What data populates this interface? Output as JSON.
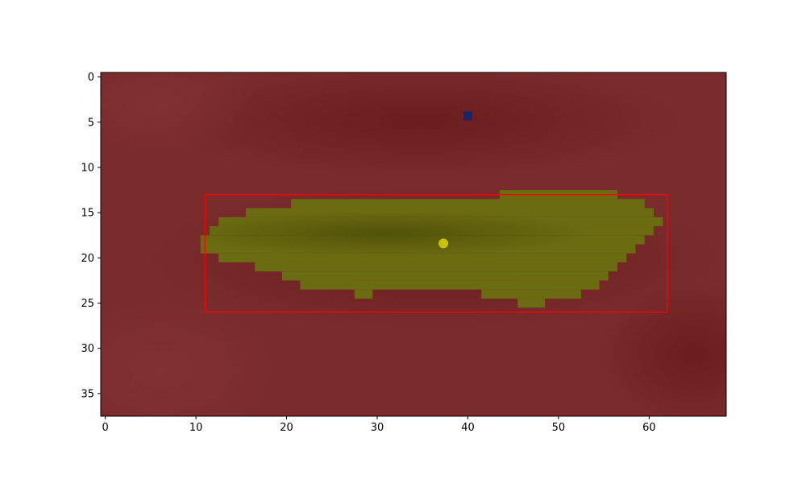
{
  "chart_data": {
    "type": "heatmap",
    "title": "",
    "xlabel": "",
    "ylabel": "",
    "xlim": [
      -0.5,
      68.5
    ],
    "ylim": [
      37.5,
      -0.5
    ],
    "x_ticks": [
      0,
      10,
      20,
      30,
      40,
      50,
      60
    ],
    "y_ticks": [
      0,
      5,
      10,
      15,
      20,
      25,
      30,
      35
    ],
    "x_tick_labels": [
      "0",
      "10",
      "20",
      "30",
      "40",
      "50",
      "60"
    ],
    "y_tick_labels": [
      "0",
      "5",
      "10",
      "15",
      "20",
      "25",
      "30",
      "35"
    ],
    "grid": false,
    "background_color": "#7a2b2b",
    "mask_color": "#6b6b12",
    "mask_rows": [
      {
        "y": 13,
        "x_start": 43.5,
        "x_end": 56.5
      },
      {
        "y": 14,
        "x_start": 20.5,
        "x_end": 59.5
      },
      {
        "y": 15,
        "x_start": 15.5,
        "x_end": 60.5
      },
      {
        "y": 16,
        "x_start": 12.5,
        "x_end": 61.5
      },
      {
        "y": 17,
        "x_start": 11.5,
        "x_end": 60.5
      },
      {
        "y": 18,
        "x_start": 10.5,
        "x_end": 59.5
      },
      {
        "y": 19,
        "x_start": 10.5,
        "x_end": 58.5
      },
      {
        "y": 20,
        "x_start": 12.5,
        "x_end": 57.5
      },
      {
        "y": 21,
        "x_start": 16.5,
        "x_end": 56.5
      },
      {
        "y": 22,
        "x_start": 19.5,
        "x_end": 55.5
      },
      {
        "y": 23,
        "x_start": 21.5,
        "x_end": 54.5
      },
      {
        "y": 24,
        "x_start": 27.5,
        "x_end": 29.5
      },
      {
        "y": 24,
        "x_start": 41.5,
        "x_end": 52.5
      },
      {
        "y": 25,
        "x_start": 45.5,
        "x_end": 48.5
      }
    ],
    "bounding_box": {
      "x0": 11,
      "y0": 13,
      "x1": 62,
      "y1": 26,
      "color": "#ff0000"
    },
    "centroid": {
      "x": 37.3,
      "y": 18.4,
      "color": "#c8c200"
    },
    "marker": {
      "x": 40,
      "y": 4.3,
      "color": "#1a2466"
    }
  }
}
